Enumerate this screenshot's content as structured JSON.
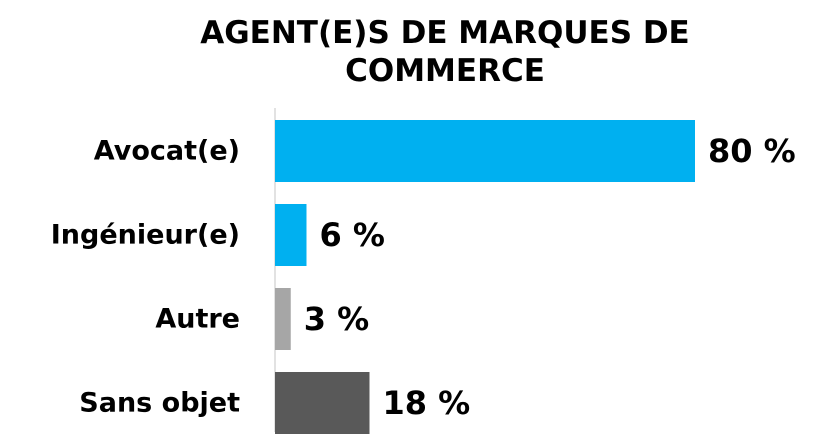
{
  "chart_data": {
    "type": "bar",
    "orientation": "horizontal",
    "title": "AGENT(E)S DE MARQUES DE COMMERCE",
    "categories": [
      "Avocat(e)",
      "Ingénieur(e)",
      "Autre",
      "Sans objet"
    ],
    "values": [
      80,
      6,
      3,
      18
    ],
    "value_labels": [
      "80 %",
      "6 %",
      "3 %",
      "18 %"
    ],
    "colors": [
      "#00b0f0",
      "#00b0f0",
      "#a6a6a6",
      "#595959"
    ]
  }
}
